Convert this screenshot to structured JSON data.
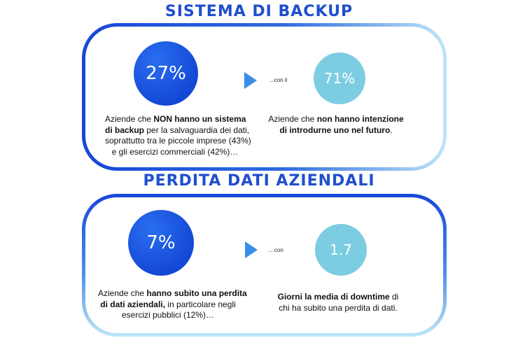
{
  "colors": {
    "title": "#1f4fcf",
    "big_circle": "#1449d6",
    "small_circle": "#7dcde2",
    "arrow": "#3a8ee6"
  },
  "sections": [
    {
      "title": "Sistema di Backup",
      "main_stat": "27%",
      "connector": "...con il",
      "secondary_stat": "71%",
      "main_text": [
        [
          {
            "t": "Aziende che ",
            "b": false
          },
          {
            "t": "NON hanno un sistema",
            "b": true
          }
        ],
        [
          {
            "t": "di backup",
            "b": true
          },
          {
            "t": " per la salvaguardia dei dati,",
            "b": false
          }
        ],
        [
          {
            "t": "soprattutto tra le piccole imprese (43%)",
            "b": false
          }
        ],
        [
          {
            "t": "e gli esercizi commerciali (42%)…",
            "b": false
          }
        ]
      ],
      "secondary_text": [
        [
          {
            "t": "Aziende  che ",
            "b": false
          },
          {
            "t": "non hanno intenzione",
            "b": true
          }
        ],
        [
          {
            "t": "di introdurne uno nel futuro",
            "b": true
          },
          {
            "t": ".",
            "b": false
          }
        ]
      ]
    },
    {
      "title": "Perdita dati aziendali",
      "main_stat": "7%",
      "connector": "... con",
      "secondary_stat": "1.7",
      "main_text": [
        [
          {
            "t": "Aziende che ",
            "b": false
          },
          {
            "t": "hanno subito una perdita",
            "b": true
          }
        ],
        [
          {
            "t": "di dati aziendali,",
            "b": true
          },
          {
            "t": " in particolare negli",
            "b": false
          }
        ],
        [
          {
            "t": "esercizi pubblici (12%)…",
            "b": false
          }
        ]
      ],
      "secondary_text": [
        [
          {
            "t": "Giorni la media di downtime",
            "b": true
          },
          {
            "t": " di",
            "b": false
          }
        ],
        [
          {
            "t": "chi ha subito una perdita di dati.",
            "b": false
          }
        ]
      ]
    }
  ]
}
